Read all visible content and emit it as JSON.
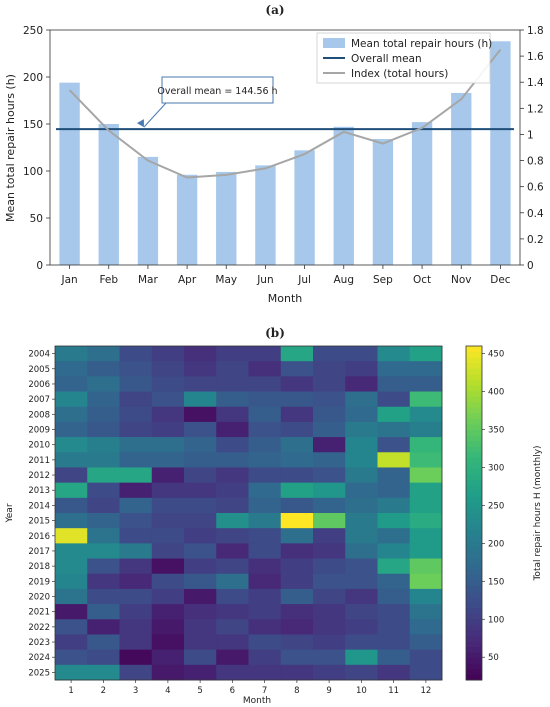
{
  "chart_data": [
    {
      "panel": "(a)",
      "type": "bar",
      "categories": [
        "Jan",
        "Feb",
        "Mar",
        "Apr",
        "May",
        "Jun",
        "Jul",
        "Aug",
        "Sep",
        "Oct",
        "Nov",
        "Dec"
      ],
      "xlabel": "Month",
      "ylabel": "Mean total repair hours (h)",
      "ylim": [
        0,
        250
      ],
      "yticks": [
        0,
        50,
        100,
        150,
        200,
        250
      ],
      "y2lim": [
        0,
        1.8
      ],
      "y2ticks": [
        "0",
        "0.2",
        "0.4",
        "0.6",
        "0.8",
        "1",
        "1.2",
        "1.4",
        "1.6",
        "1.8"
      ],
      "series": [
        {
          "name": "Mean total repair hours (h)",
          "kind": "bar",
          "color": "#a7c8ea",
          "values": [
            194,
            150,
            115,
            96,
            99,
            106,
            122,
            147,
            134,
            152,
            183,
            238
          ]
        },
        {
          "name": "Overall mean",
          "kind": "hline",
          "color": "#1f4e79",
          "value": 144.56
        },
        {
          "name": "Index (total hours)",
          "kind": "line",
          "axis": "right",
          "color": "#a6a6a6",
          "values": [
            1.34,
            1.03,
            0.8,
            0.67,
            0.69,
            0.74,
            0.85,
            1.02,
            0.93,
            1.05,
            1.27,
            1.65
          ]
        }
      ],
      "annotation": "Overall mean = 144.56 h",
      "legend_position": "top-right"
    },
    {
      "panel": "(b)",
      "type": "heatmap",
      "xlabel": "Month",
      "ylabel": "Year",
      "x": [
        "1",
        "2",
        "3",
        "4",
        "5",
        "6",
        "7",
        "8",
        "9",
        "10",
        "11",
        "12"
      ],
      "y": [
        "2004",
        "2005",
        "2006",
        "2007",
        "2008",
        "2009",
        "2010",
        "2011",
        "2012",
        "2013",
        "2014",
        "2015",
        "2016",
        "2017",
        "2018",
        "2019",
        "2020",
        "2021",
        "2022",
        "2023",
        "2024",
        "2025"
      ],
      "colorbar_label": "Total repair hours H (monthly)",
      "colorbar_range": [
        20,
        460
      ],
      "colorbar_ticks": [
        50,
        100,
        150,
        200,
        250,
        300,
        350,
        400,
        450
      ],
      "colormap": "viridis",
      "values": [
        [
          200,
          180,
          120,
          100,
          80,
          100,
          100,
          280,
          120,
          120,
          230,
          270
        ],
        [
          170,
          150,
          130,
          110,
          90,
          110,
          80,
          130,
          110,
          100,
          170,
          170
        ],
        [
          160,
          180,
          140,
          120,
          110,
          110,
          110,
          90,
          110,
          70,
          150,
          150
        ],
        [
          220,
          160,
          110,
          130,
          220,
          150,
          140,
          140,
          130,
          180,
          120,
          320
        ],
        [
          180,
          150,
          120,
          90,
          40,
          90,
          150,
          90,
          140,
          170,
          270,
          230
        ],
        [
          160,
          140,
          110,
          100,
          130,
          60,
          130,
          120,
          150,
          200,
          190,
          210
        ],
        [
          230,
          210,
          180,
          180,
          160,
          120,
          150,
          180,
          60,
          220,
          130,
          310
        ],
        [
          200,
          200,
          160,
          160,
          150,
          150,
          160,
          170,
          160,
          220,
          420,
          320
        ],
        [
          110,
          280,
          280,
          60,
          110,
          90,
          120,
          120,
          130,
          200,
          160,
          360
        ],
        [
          280,
          120,
          60,
          90,
          90,
          100,
          170,
          270,
          250,
          170,
          160,
          270
        ],
        [
          140,
          110,
          160,
          120,
          120,
          110,
          160,
          140,
          160,
          180,
          200,
          270
        ],
        [
          180,
          160,
          130,
          110,
          110,
          240,
          200,
          460,
          350,
          200,
          260,
          290
        ],
        [
          440,
          190,
          120,
          120,
          100,
          110,
          120,
          180,
          100,
          200,
          180,
          260
        ],
        [
          230,
          230,
          200,
          110,
          130,
          70,
          120,
          80,
          90,
          180,
          220,
          260
        ],
        [
          230,
          130,
          90,
          40,
          100,
          110,
          80,
          100,
          120,
          130,
          280,
          350
        ],
        [
          220,
          90,
          70,
          120,
          140,
          180,
          70,
          100,
          130,
          130,
          160,
          360
        ],
        [
          190,
          120,
          120,
          100,
          50,
          120,
          100,
          150,
          110,
          90,
          150,
          220
        ],
        [
          50,
          150,
          100,
          60,
          80,
          90,
          100,
          80,
          90,
          110,
          120,
          190
        ],
        [
          130,
          60,
          90,
          50,
          90,
          110,
          80,
          70,
          90,
          100,
          120,
          170
        ],
        [
          100,
          140,
          90,
          40,
          90,
          90,
          120,
          110,
          100,
          120,
          120,
          150
        ],
        [
          130,
          120,
          30,
          60,
          120,
          50,
          100,
          130,
          130,
          250,
          150,
          120
        ],
        [
          230,
          230,
          110,
          50,
          60,
          90,
          90,
          90,
          100,
          110,
          90,
          120
        ]
      ]
    }
  ]
}
